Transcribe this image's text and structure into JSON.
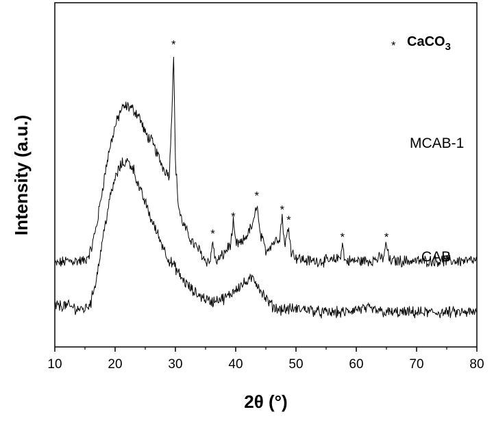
{
  "chart_data": {
    "type": "line",
    "xlabel": "2θ (°)",
    "ylabel": "Intensity (a.u.)",
    "xlim": [
      10,
      80
    ],
    "xticks": [
      10,
      20,
      30,
      40,
      50,
      60,
      70,
      80
    ],
    "grid": false,
    "legend": {
      "placement": "top-right",
      "symbol": "*",
      "text": "CaCO",
      "subscript": "3"
    },
    "series": [
      {
        "name": "MCAB-1",
        "color": "#000000",
        "x": [
          10,
          12,
          14,
          15,
          16,
          17,
          18,
          19,
          20,
          21,
          22,
          23,
          24,
          25,
          26,
          27,
          28,
          29,
          29.5,
          29.7,
          30,
          30.5,
          31,
          32,
          33,
          34,
          35,
          35.8,
          36.2,
          36.6,
          37,
          38,
          39.2,
          39.6,
          40,
          41,
          42,
          43,
          43.5,
          44,
          45,
          46,
          47.3,
          47.7,
          48.1,
          48.5,
          48.8,
          49.2,
          50,
          52,
          54,
          56,
          57.3,
          57.7,
          58.1,
          60,
          62,
          64.5,
          65,
          65.5,
          67,
          70,
          73,
          76,
          80
        ],
        "y": [
          0.24,
          0.25,
          0.25,
          0.25,
          0.28,
          0.36,
          0.47,
          0.57,
          0.64,
          0.69,
          0.7,
          0.69,
          0.67,
          0.62,
          0.6,
          0.56,
          0.52,
          0.5,
          0.73,
          0.86,
          0.54,
          0.41,
          0.37,
          0.33,
          0.3,
          0.28,
          0.25,
          0.25,
          0.31,
          0.25,
          0.25,
          0.27,
          0.3,
          0.36,
          0.3,
          0.3,
          0.33,
          0.36,
          0.42,
          0.33,
          0.28,
          0.3,
          0.32,
          0.38,
          0.3,
          0.32,
          0.35,
          0.28,
          0.26,
          0.25,
          0.25,
          0.25,
          0.26,
          0.3,
          0.25,
          0.25,
          0.25,
          0.26,
          0.3,
          0.25,
          0.25,
          0.25,
          0.25,
          0.25,
          0.25
        ],
        "markers": [
          29.7,
          36.2,
          39.6,
          43.5,
          47.7,
          48.8,
          57.7,
          65
        ]
      },
      {
        "name": "CAB",
        "color": "#000000",
        "x": [
          10,
          12,
          14,
          15,
          16,
          17,
          18,
          19,
          20,
          21,
          22,
          23,
          24,
          25,
          26,
          27,
          28,
          29,
          30,
          31,
          32,
          33,
          34,
          35,
          36,
          37,
          38,
          39,
          40,
          41,
          42,
          43,
          44,
          45,
          46,
          47,
          48,
          50,
          52,
          54,
          56,
          58,
          60,
          62,
          65,
          70,
          75,
          80
        ],
        "y": [
          0.12,
          0.12,
          0.11,
          0.11,
          0.13,
          0.21,
          0.32,
          0.42,
          0.49,
          0.53,
          0.54,
          0.52,
          0.46,
          0.42,
          0.37,
          0.33,
          0.29,
          0.25,
          0.23,
          0.2,
          0.18,
          0.16,
          0.15,
          0.14,
          0.13,
          0.14,
          0.14,
          0.15,
          0.17,
          0.18,
          0.19,
          0.2,
          0.17,
          0.14,
          0.12,
          0.11,
          0.11,
          0.11,
          0.11,
          0.1,
          0.1,
          0.1,
          0.11,
          0.11,
          0.1,
          0.1,
          0.1,
          0.1
        ]
      }
    ]
  }
}
